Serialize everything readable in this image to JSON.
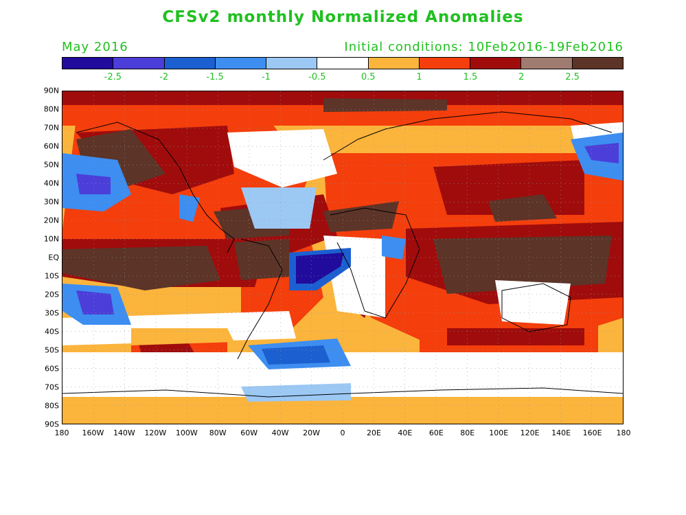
{
  "header": {
    "title": "CFSv2 monthly Normalized Anomalies",
    "month": "May 2016",
    "init": "Initial conditions: 10Feb2016-19Feb2016"
  },
  "legend": {
    "colors": [
      "#200b9c",
      "#4c3ed8",
      "#1c5fd0",
      "#3d8ef0",
      "#9cc8f4",
      "#ffffff",
      "#fbb43c",
      "#f43e0c",
      "#a00c0c",
      "#a07c70",
      "#5c3428"
    ],
    "labels": [
      "-2.5",
      "-2",
      "-1.5",
      "-1",
      "-0.5",
      "0.5",
      "1",
      "1.5",
      "2",
      "2.5"
    ]
  },
  "axes": {
    "lat_labels": [
      "90N",
      "80N",
      "70N",
      "60N",
      "50N",
      "40N",
      "30N",
      "20N",
      "10N",
      "EQ",
      "10S",
      "20S",
      "30S",
      "40S",
      "50S",
      "60S",
      "70S",
      "80S",
      "90S"
    ],
    "lon_labels": [
      "180",
      "160W",
      "140W",
      "120W",
      "100W",
      "80W",
      "60W",
      "40W",
      "20W",
      "0",
      "20E",
      "40E",
      "60E",
      "80E",
      "100E",
      "120E",
      "140E",
      "160E",
      "180"
    ]
  }
}
